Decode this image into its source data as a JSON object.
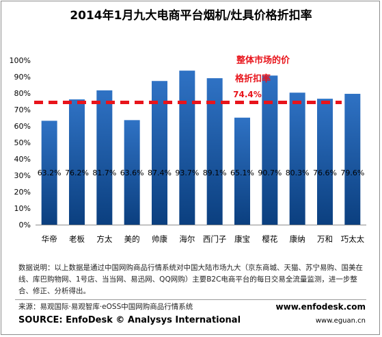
{
  "chart_data": {
    "type": "bar",
    "title": "2014年1月九大电商平台烟机/灶具价格折扣率",
    "categories": [
      "华帝",
      "老板",
      "方太",
      "美的",
      "帅康",
      "海尔",
      "西门子",
      "康宝",
      "樱花",
      "康纳",
      "万和",
      "巧太太"
    ],
    "values": [
      63.2,
      76.2,
      81.7,
      63.6,
      87.4,
      93.7,
      89.1,
      65.1,
      90.7,
      80.3,
      76.6,
      79.6
    ],
    "value_labels": [
      "63.2%",
      "76.2%",
      "81.7%",
      "63.6%",
      "87.4%",
      "93.7%",
      "89.1%",
      "65.1%",
      "90.7%",
      "80.3%",
      "76.6%",
      "79.6%"
    ],
    "ylim": [
      0,
      100
    ],
    "yticks": [
      0,
      10,
      20,
      30,
      40,
      50,
      60,
      70,
      80,
      90,
      100
    ],
    "ytick_labels": [
      "0%",
      "10%",
      "20%",
      "30%",
      "40%",
      "50%",
      "60%",
      "70%",
      "80%",
      "90%",
      "100%"
    ],
    "grid": false,
    "bar_color_top": "#2f72c4",
    "bar_color_bottom": "#0b3f7f",
    "reference_line": {
      "value": 74.4,
      "label_line1": "整体市场的价",
      "label_line2": "格折扣率",
      "value_label": "74.4%",
      "color": "#e8141b"
    }
  },
  "footer": {
    "note": "数据说明：以上数据是通过中国网购商品行情系统对中国大陆市场九大（京东商城、天猫、苏宁易购、国美在线、库巴购物网、1号店、当当网、易迅网、QQ网购）主要B2C电商平台的每日交易全流量监测，进一步整合、修正、分析得出。",
    "source_cn": "来源：易观国际·易观智库·eOSS中国网购商品行情系统",
    "source_en": "SOURCE: EnfoDesk © Analysys International",
    "url1": "www.enfodesk.com",
    "url2": "www.eguan.cn"
  }
}
